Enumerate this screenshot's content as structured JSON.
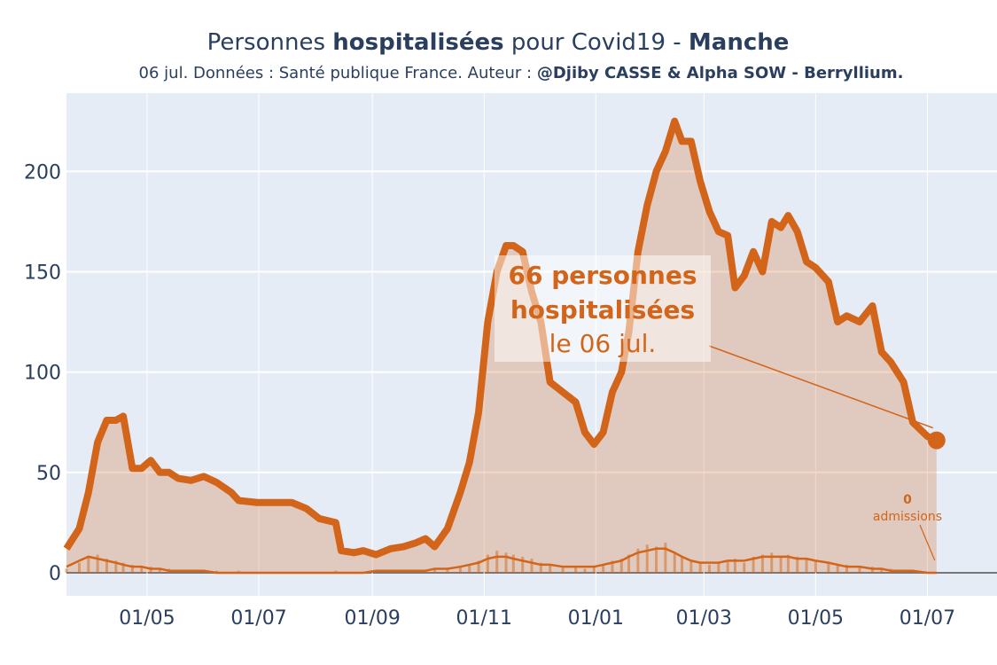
{
  "chart_data": {
    "type": "line",
    "title": [
      "Personnes ",
      "hospitalisées",
      " pour Covid19 - ",
      "Manche"
    ],
    "subtitle": [
      "06 jul. Données : Santé publique France. Auteur : ",
      "@Djiby CASSE & Alpha SOW - Berryllium."
    ],
    "x": [
      0,
      7,
      12,
      17,
      22,
      27,
      31,
      36,
      41,
      46,
      51,
      56,
      61,
      68,
      75,
      82,
      90,
      94,
      104,
      114,
      123,
      131,
      138,
      147,
      150,
      157,
      162,
      169,
      177,
      184,
      191,
      196,
      201,
      208,
      215,
      220,
      225,
      230,
      235,
      240,
      244,
      249,
      254,
      259,
      264,
      271,
      278,
      283,
      288,
      293,
      298,
      303,
      307,
      312,
      317,
      322,
      327,
      332,
      336,
      341,
      346,
      351,
      356,
      361,
      365,
      370,
      375,
      380,
      385,
      390,
      394,
      399,
      404,
      409,
      416,
      421,
      426,
      433,
      440,
      445,
      450,
      457,
      462,
      470,
      475
    ],
    "series": [
      {
        "style": "area-line",
        "color": "#d2651a",
        "values": [
          12,
          22,
          40,
          65,
          76,
          76,
          78,
          52,
          52,
          56,
          50,
          50,
          47,
          46,
          48,
          45,
          40,
          36,
          35,
          35,
          35,
          32,
          27,
          25,
          11,
          10,
          11,
          9,
          12,
          13,
          15,
          17,
          13,
          22,
          40,
          55,
          80,
          125,
          150,
          163,
          163,
          160,
          140,
          125,
          95,
          90,
          85,
          70,
          64,
          70,
          90,
          100,
          120,
          160,
          183,
          200,
          210,
          225,
          215,
          215,
          195,
          180,
          170,
          168,
          142,
          148,
          160,
          150,
          175,
          172,
          178,
          170,
          155,
          152,
          145,
          125,
          128,
          125,
          133,
          110,
          105,
          95,
          75,
          68,
          66
        ]
      },
      {
        "style": "bar",
        "color": "#d2651a",
        "values": [
          2,
          5,
          8,
          9,
          7,
          6,
          5,
          4,
          3,
          3,
          2,
          2,
          1,
          1,
          1,
          1,
          0,
          1,
          0,
          0,
          0,
          0,
          0,
          1,
          0,
          0,
          0,
          1,
          1,
          1,
          1,
          1,
          2,
          2,
          3,
          4,
          6,
          9,
          11,
          10,
          9,
          8,
          7,
          5,
          4,
          3,
          3,
          2,
          3,
          4,
          6,
          7,
          9,
          12,
          14,
          13,
          15,
          10,
          8,
          6,
          5,
          4,
          5,
          6,
          7,
          5,
          8,
          9,
          10,
          8,
          9,
          8,
          7,
          6,
          5,
          4,
          4,
          3,
          3,
          2,
          2,
          1,
          1,
          0,
          0
        ]
      },
      {
        "style": "line",
        "color": "#d2651a",
        "values": [
          3,
          6,
          8,
          7,
          6,
          5,
          4,
          3,
          3,
          2,
          2,
          1,
          1,
          1,
          1,
          0,
          0,
          0,
          0,
          0,
          0,
          0,
          0,
          0,
          0,
          0,
          0,
          1,
          1,
          1,
          1,
          1,
          2,
          2,
          3,
          4,
          5,
          7,
          8,
          8,
          7,
          6,
          5,
          4,
          4,
          3,
          3,
          3,
          3,
          4,
          5,
          6,
          8,
          10,
          11,
          12,
          12,
          10,
          8,
          6,
          5,
          5,
          5,
          6,
          6,
          6,
          7,
          8,
          8,
          8,
          8,
          7,
          7,
          6,
          5,
          4,
          3,
          3,
          2,
          2,
          1,
          1,
          1,
          0,
          0
        ]
      }
    ],
    "xlim": [
      0,
      508
    ],
    "ylim": [
      -11.5,
      239
    ],
    "xticks": [
      {
        "value": 44,
        "label": "01/05"
      },
      {
        "value": 105,
        "label": "01/07"
      },
      {
        "value": 167,
        "label": "01/09"
      },
      {
        "value": 228,
        "label": "01/11"
      },
      {
        "value": 289,
        "label": "01/01"
      },
      {
        "value": 348,
        "label": "01/03"
      },
      {
        "value": 409,
        "label": "01/05"
      },
      {
        "value": 470,
        "label": "01/07"
      }
    ],
    "yticks": [
      0,
      50,
      100,
      150,
      200
    ],
    "grid": true,
    "annotations": [
      {
        "lines": [
          "66 personnes",
          "hospitalisées",
          "le 06 jul."
        ]
      },
      {
        "lines": [
          "0",
          "admissions"
        ]
      }
    ]
  }
}
